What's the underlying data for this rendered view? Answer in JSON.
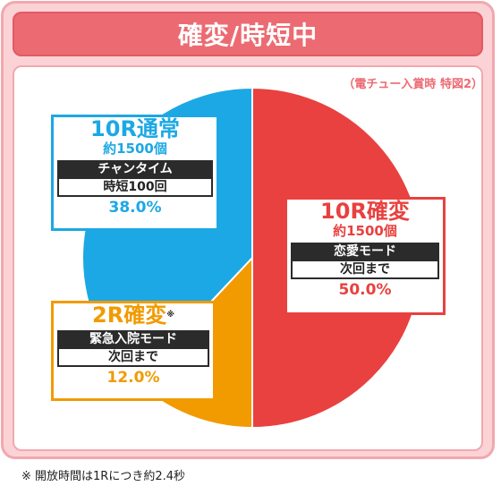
{
  "header": {
    "title": "確変/時短中"
  },
  "note": "（電チュー入賞時 特図2）",
  "footnote": "※ 開放時間は1Rにつき約2.4秒",
  "labels": {
    "red": {
      "name": "10R確変",
      "sub": "約1500個",
      "mode": "恋愛モード",
      "mode_sub": "次回まで",
      "pct": "50.0%"
    },
    "blue": {
      "name": "10R通常",
      "sub": "約1500個",
      "mode": "チャンタイム",
      "mode_sub": "時短100回",
      "pct": "38.0%"
    },
    "orange": {
      "name": "2R確変",
      "mark": "※",
      "mode": "緊急入院モード",
      "mode_sub": "次回まで",
      "pct": "12.0%"
    }
  },
  "chart_data": {
    "type": "pie",
    "title": "確変/時短中",
    "subtitle": "（電チュー入賞時 特図2）",
    "slices": [
      {
        "label": "10R確変",
        "value": 50.0,
        "color": "#e8413f"
      },
      {
        "label": "2R確変",
        "value": 12.0,
        "color": "#f19b00"
      },
      {
        "label": "10R通常",
        "value": 38.0,
        "color": "#1ca8e4"
      }
    ],
    "start": "top",
    "direction": "clockwise"
  }
}
